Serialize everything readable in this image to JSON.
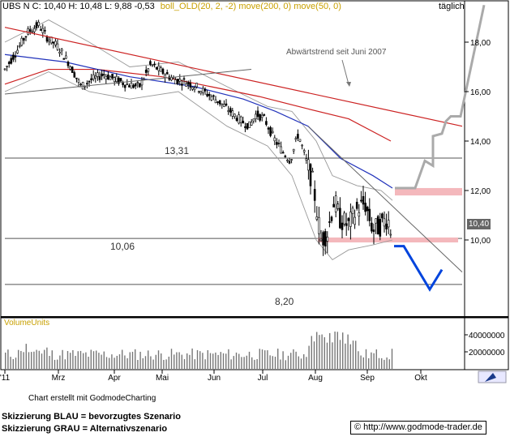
{
  "chart_data": {
    "type": "candlestick",
    "title": "UBS N C: 10,40 H: 10,48 L: 9,88 -0,53",
    "indicators": {
      "text": "boll_OLD(20, 2, -2) move(200, 0) move(50, 0)",
      "color": "#c8a000"
    },
    "timeframe": "täglich",
    "price_axis": {
      "ticks": [
        "18,00",
        "16,00",
        "14,00",
        "12,00",
        "10,00"
      ],
      "range": [
        7.0,
        19.7
      ]
    },
    "time_axis": {
      "labels": [
        "'11",
        "Mrz",
        "Apr",
        "Mai",
        "Jun",
        "Jul",
        "Aug",
        "Sep",
        "Okt"
      ]
    },
    "last_price_label": "10,40",
    "horizontal_levels": [
      {
        "label": "13,31",
        "value": 13.31
      },
      {
        "label": "10,06",
        "value": 10.06
      },
      {
        "label": "8,20",
        "value": 8.2
      }
    ],
    "resistance_zones": [
      {
        "from": 11.8,
        "to": 12.1
      },
      {
        "from": 9.9,
        "to": 10.1
      }
    ],
    "annotation": "Abwärtstrend seit Juni 2007",
    "volume": {
      "label": "VolumeUnits",
      "ticks": [
        "40000000",
        "20000000"
      ]
    },
    "scenario_colors": {
      "blue": "#0044dd",
      "gray": "#aaaaaa",
      "trend": "#cc2222"
    }
  },
  "footer": {
    "credit": "Chart erstellt mit GodmodeCharting",
    "note_blue": "Skizzierung BLAU = bevorzugtes Szenario",
    "note_gray": "Skizzierung GRAU = Alternativszenario",
    "copyright_symbol": "©",
    "url": "http://www.godmode-trader.de"
  }
}
